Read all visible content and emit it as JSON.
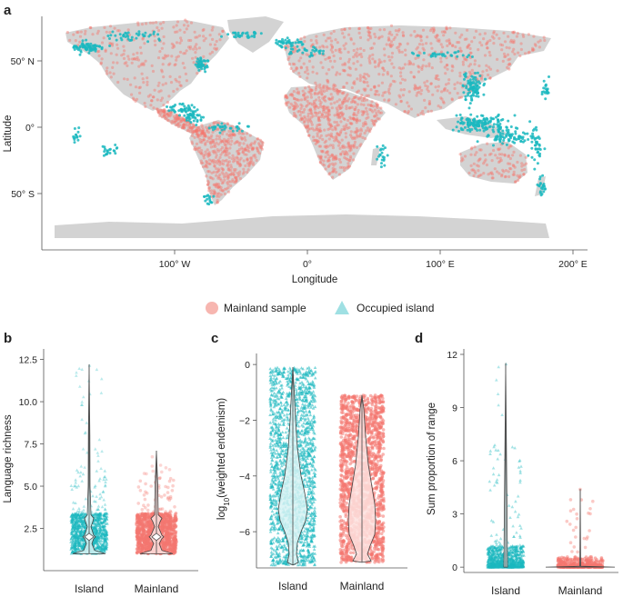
{
  "colors": {
    "island": "#1bb8bf",
    "mainland": "#f4776f",
    "land": "#d3d3d3",
    "axis": "#555555"
  },
  "legend": {
    "mainland_label": "Mainland sample",
    "island_label": "Occupied island"
  },
  "chart_data": [
    {
      "id": "a",
      "panel_letter": "a",
      "type": "scatter",
      "title": "",
      "xlabel": "Longitude",
      "ylabel": "Latitude",
      "xlim": [
        -180,
        200
      ],
      "ylim": [
        -90,
        90
      ],
      "x_ticks": [
        {
          "value": -100,
          "label": "100° W"
        },
        {
          "value": 0,
          "label": "0°"
        },
        {
          "value": 100,
          "label": "100° E"
        },
        {
          "value": 200,
          "label": "200° E"
        }
      ],
      "y_ticks": [
        {
          "value": 50,
          "label": "50° N"
        },
        {
          "value": 0,
          "label": "0°"
        },
        {
          "value": -50,
          "label": "50° S"
        }
      ],
      "series": [
        {
          "name": "Mainland sample",
          "description": "points spread over continental interiors"
        },
        {
          "name": "Occupied island",
          "description": "points along coasts and island groups"
        }
      ]
    },
    {
      "id": "b",
      "panel_letter": "b",
      "type": "scatter",
      "subtype": "violin with jittered points",
      "xlabel": "",
      "ylabel": "Language richness",
      "categories": [
        "Island",
        "Mainland"
      ],
      "ylim": [
        0,
        12.8
      ],
      "y_ticks": [
        2.5,
        5.0,
        7.5,
        10.0,
        12.5
      ],
      "y_tick_labels": [
        "2.5",
        "5.0",
        "7.5",
        "10.0",
        "12.5"
      ],
      "series": [
        {
          "name": "Island",
          "min": 1,
          "median": 2,
          "max": 12.2,
          "dense_range": [
            1,
            3.4
          ]
        },
        {
          "name": "Mainland",
          "min": 1,
          "median": 2,
          "max": 7.1,
          "dense_range": [
            1,
            3.4
          ]
        }
      ]
    },
    {
      "id": "c",
      "panel_letter": "c",
      "type": "scatter",
      "subtype": "violin with jittered points",
      "xlabel": "",
      "ylabel_prefix": "log",
      "ylabel_sub": "10",
      "ylabel_suffix": "(weighted endemism)",
      "categories": [
        "Island",
        "Mainland"
      ],
      "ylim": [
        -7.3,
        0.2
      ],
      "y_ticks": [
        0,
        -2,
        -4,
        -6
      ],
      "y_tick_labels": [
        "0",
        "−2",
        "−4",
        "−6"
      ],
      "series": [
        {
          "name": "Island",
          "min": -7.2,
          "median": -5.2,
          "max": -0.1
        },
        {
          "name": "Mainland",
          "min": -7.1,
          "median": -6.1,
          "max": -1.1
        }
      ]
    },
    {
      "id": "d",
      "panel_letter": "d",
      "type": "scatter",
      "subtype": "violin with jittered points",
      "xlabel": "",
      "ylabel": "Sum proportion of range",
      "categories": [
        "Island",
        "Mainland"
      ],
      "ylim": [
        -0.3,
        12
      ],
      "y_ticks": [
        0,
        3,
        6,
        9,
        12
      ],
      "y_tick_labels": [
        "0",
        "3",
        "6",
        "9",
        "12"
      ],
      "series": [
        {
          "name": "Island",
          "min": 0,
          "median": 0,
          "max": 11.5
        },
        {
          "name": "Mainland",
          "min": 0,
          "median": 0,
          "max": 4.4
        }
      ]
    }
  ]
}
